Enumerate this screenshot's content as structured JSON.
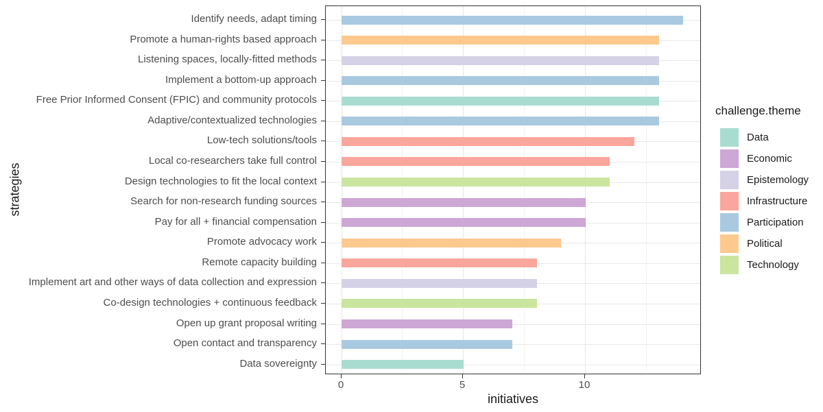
{
  "chart_data": {
    "type": "bar",
    "orientation": "horizontal",
    "xlabel": "initiatives",
    "ylabel": "strategies",
    "legend_title": "challenge.theme",
    "legend_position": "right",
    "x_major_ticks": [
      0,
      5,
      10
    ],
    "x_minor_ticks": [
      2.5,
      7.5,
      12.5
    ],
    "xlim": [
      -0.63,
      14.78
    ],
    "grid": true,
    "categories": [
      "Identify needs, adapt timing",
      "Promote a human-rights based approach",
      "Listening spaces, locally-fitted methods",
      "Implement a bottom-up approach",
      "Free Prior Informed Consent (FPIC) and community protocols",
      "Adaptive/contextualized technologies",
      "Low-tech solutions/tools",
      "Local co-researchers take full control",
      "Design technologies to fit the local context",
      "Search for non-research funding sources",
      "Pay for all + financial compensation",
      "Promote advocacy work",
      "Remote capacity building",
      "Implement art and other ways of data collection and expression",
      "Co-design technologies + continuous feedback",
      "Open up grant proposal writing",
      "Open contact and transparency",
      "Data sovereignty"
    ],
    "values": [
      14,
      13,
      13,
      13,
      13,
      13,
      12,
      11,
      11,
      10,
      10,
      9,
      8,
      8,
      8,
      7,
      7,
      5
    ],
    "themes": [
      "Participation",
      "Political",
      "Epistemology",
      "Participation",
      "Data",
      "Participation",
      "Infrastructure",
      "Infrastructure",
      "Technology",
      "Economic",
      "Economic",
      "Political",
      "Infrastructure",
      "Epistemology",
      "Technology",
      "Economic",
      "Participation",
      "Data"
    ],
    "legend_entries": [
      "Data",
      "Economic",
      "Epistemology",
      "Infrastructure",
      "Participation",
      "Political",
      "Technology"
    ],
    "theme_colors": {
      "Data": "#a9dcd1",
      "Economic": "#cda7d5",
      "Epistemology": "#d5d1e6",
      "Infrastructure": "#fba69c",
      "Participation": "#a9c9e0",
      "Political": "#fdc98f",
      "Technology": "#c9e59e"
    }
  }
}
